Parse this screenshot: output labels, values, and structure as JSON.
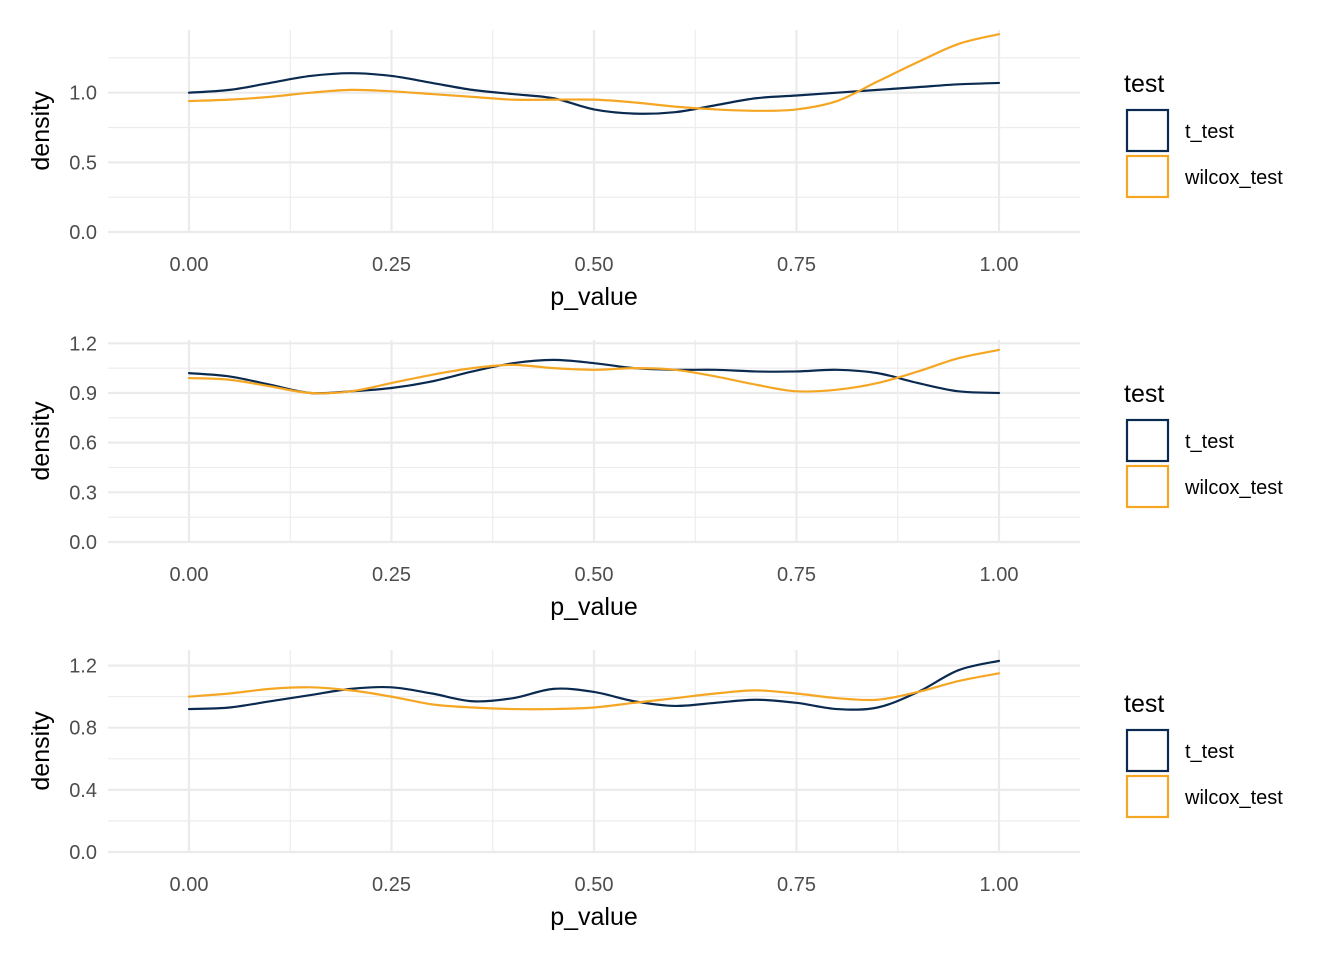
{
  "colors": {
    "t_test": "#0b2a50",
    "wilcox_test": "#f5a623"
  },
  "chart_data": [
    {
      "type": "line",
      "xlabel": "p_value",
      "ylabel": "density",
      "xlim": [
        -0.1,
        1.1
      ],
      "ylim": [
        0,
        1.45
      ],
      "xticks": [
        0,
        0.25,
        0.5,
        0.75,
        1
      ],
      "xtick_labels": [
        "0.00",
        "0.25",
        "0.50",
        "0.75",
        "1.00"
      ],
      "yticks": [
        0,
        0.5,
        1.0
      ],
      "ytick_labels": [
        "0.0",
        "0.5",
        "1.0"
      ],
      "grid": true,
      "legend": {
        "title": "test",
        "position": "right",
        "entries": [
          "t_test",
          "wilcox_test"
        ]
      },
      "series": [
        {
          "name": "t_test",
          "x": [
            0,
            0.05,
            0.1,
            0.15,
            0.2,
            0.25,
            0.3,
            0.35,
            0.4,
            0.45,
            0.5,
            0.55,
            0.6,
            0.65,
            0.7,
            0.75,
            0.8,
            0.85,
            0.9,
            0.95,
            1.0
          ],
          "y": [
            1.0,
            1.02,
            1.07,
            1.12,
            1.14,
            1.12,
            1.07,
            1.02,
            0.99,
            0.96,
            0.88,
            0.85,
            0.86,
            0.91,
            0.96,
            0.98,
            1.0,
            1.02,
            1.04,
            1.06,
            1.07
          ]
        },
        {
          "name": "wilcox_test",
          "x": [
            0,
            0.05,
            0.1,
            0.15,
            0.2,
            0.25,
            0.3,
            0.35,
            0.4,
            0.45,
            0.5,
            0.55,
            0.6,
            0.65,
            0.7,
            0.75,
            0.8,
            0.85,
            0.9,
            0.95,
            1.0
          ],
          "y": [
            0.94,
            0.95,
            0.97,
            1.0,
            1.02,
            1.01,
            0.99,
            0.97,
            0.95,
            0.95,
            0.95,
            0.93,
            0.9,
            0.88,
            0.87,
            0.88,
            0.94,
            1.08,
            1.22,
            1.35,
            1.42
          ]
        }
      ]
    },
    {
      "type": "line",
      "xlabel": "p_value",
      "ylabel": "density",
      "xlim": [
        -0.1,
        1.1
      ],
      "ylim": [
        0,
        1.22
      ],
      "xticks": [
        0,
        0.25,
        0.5,
        0.75,
        1
      ],
      "xtick_labels": [
        "0.00",
        "0.25",
        "0.50",
        "0.75",
        "1.00"
      ],
      "yticks": [
        0,
        0.3,
        0.6,
        0.9,
        1.2
      ],
      "ytick_labels": [
        "0.0",
        "0.3",
        "0.6",
        "0.9",
        "1.2"
      ],
      "grid": true,
      "legend": {
        "title": "test",
        "position": "right",
        "entries": [
          "t_test",
          "wilcox_test"
        ]
      },
      "series": [
        {
          "name": "t_test",
          "x": [
            0,
            0.05,
            0.1,
            0.15,
            0.2,
            0.25,
            0.3,
            0.35,
            0.4,
            0.45,
            0.5,
            0.55,
            0.6,
            0.65,
            0.7,
            0.75,
            0.8,
            0.85,
            0.9,
            0.95,
            1.0
          ],
          "y": [
            1.02,
            1.0,
            0.95,
            0.9,
            0.91,
            0.93,
            0.97,
            1.03,
            1.08,
            1.1,
            1.08,
            1.05,
            1.04,
            1.04,
            1.03,
            1.03,
            1.04,
            1.02,
            0.96,
            0.91,
            0.9
          ]
        },
        {
          "name": "wilcox_test",
          "x": [
            0,
            0.05,
            0.1,
            0.15,
            0.2,
            0.25,
            0.3,
            0.35,
            0.4,
            0.45,
            0.5,
            0.55,
            0.6,
            0.65,
            0.7,
            0.75,
            0.8,
            0.85,
            0.9,
            0.95,
            1.0
          ],
          "y": [
            0.99,
            0.98,
            0.94,
            0.9,
            0.91,
            0.96,
            1.01,
            1.05,
            1.07,
            1.05,
            1.04,
            1.05,
            1.04,
            1.0,
            0.95,
            0.91,
            0.92,
            0.96,
            1.03,
            1.11,
            1.16
          ]
        }
      ]
    },
    {
      "type": "line",
      "xlabel": "p_value",
      "ylabel": "density",
      "xlim": [
        -0.1,
        1.1
      ],
      "ylim": [
        0,
        1.3
      ],
      "xticks": [
        0,
        0.25,
        0.5,
        0.75,
        1
      ],
      "xtick_labels": [
        "0.00",
        "0.25",
        "0.50",
        "0.75",
        "1.00"
      ],
      "yticks": [
        0,
        0.4,
        0.8,
        1.2
      ],
      "ytick_labels": [
        "0.0",
        "0.4",
        "0.8",
        "1.2"
      ],
      "grid": true,
      "legend": {
        "title": "test",
        "position": "right",
        "entries": [
          "t_test",
          "wilcox_test"
        ]
      },
      "series": [
        {
          "name": "t_test",
          "x": [
            0,
            0.05,
            0.1,
            0.15,
            0.2,
            0.25,
            0.3,
            0.35,
            0.4,
            0.45,
            0.5,
            0.55,
            0.6,
            0.65,
            0.7,
            0.75,
            0.8,
            0.85,
            0.9,
            0.95,
            1.0
          ],
          "y": [
            0.92,
            0.93,
            0.97,
            1.01,
            1.05,
            1.06,
            1.02,
            0.97,
            0.99,
            1.05,
            1.03,
            0.97,
            0.94,
            0.96,
            0.98,
            0.96,
            0.92,
            0.93,
            1.03,
            1.17,
            1.23
          ]
        },
        {
          "name": "wilcox_test",
          "x": [
            0,
            0.05,
            0.1,
            0.15,
            0.2,
            0.25,
            0.3,
            0.35,
            0.4,
            0.45,
            0.5,
            0.55,
            0.6,
            0.65,
            0.7,
            0.75,
            0.8,
            0.85,
            0.9,
            0.95,
            1.0
          ],
          "y": [
            1.0,
            1.02,
            1.05,
            1.06,
            1.04,
            1.0,
            0.95,
            0.93,
            0.92,
            0.92,
            0.93,
            0.96,
            0.99,
            1.02,
            1.04,
            1.02,
            0.99,
            0.98,
            1.03,
            1.1,
            1.15
          ]
        }
      ]
    }
  ]
}
